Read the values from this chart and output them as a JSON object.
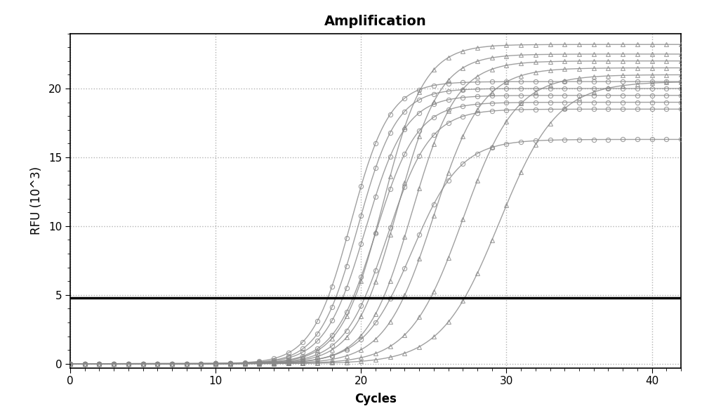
{
  "title": "Amplification",
  "xlabel": "Cycles",
  "ylabel": "RFU (10^3)",
  "xlim": [
    0,
    42
  ],
  "ylim": [
    -0.3,
    24
  ],
  "xticks": [
    0,
    10,
    20,
    30,
    40
  ],
  "yticks": [
    0,
    5,
    10,
    15,
    20
  ],
  "threshold_y": 4.8,
  "threshold_color": "#000000",
  "threshold_lw": 2.5,
  "background_color": "#ffffff",
  "grid_color": "#aaaaaa",
  "curve_color": "#888888",
  "circle_curves": [
    {
      "midpoint": 19.3,
      "plateau": 20.5,
      "steepness": 0.75
    },
    {
      "midpoint": 19.8,
      "plateau": 20.0,
      "steepness": 0.75
    },
    {
      "midpoint": 20.3,
      "plateau": 19.5,
      "steepness": 0.72
    },
    {
      "midpoint": 21.0,
      "plateau": 19.0,
      "steepness": 0.7
    },
    {
      "midpoint": 21.8,
      "plateau": 18.5,
      "steepness": 0.68
    },
    {
      "midpoint": 23.5,
      "plateau": 16.3,
      "steepness": 0.6
    }
  ],
  "triangle_curves": [
    {
      "midpoint": 21.5,
      "plateau": 23.2,
      "steepness": 0.7
    },
    {
      "midpoint": 22.5,
      "plateau": 22.5,
      "steepness": 0.68
    },
    {
      "midpoint": 23.5,
      "plateau": 22.0,
      "steepness": 0.65
    },
    {
      "midpoint": 25.0,
      "plateau": 21.5,
      "steepness": 0.6
    },
    {
      "midpoint": 27.0,
      "plateau": 21.0,
      "steepness": 0.55
    },
    {
      "midpoint": 29.5,
      "plateau": 20.5,
      "steepness": 0.5
    }
  ],
  "title_fontsize": 14,
  "axis_fontsize": 12,
  "tick_fontsize": 11,
  "line_alpha": 0.8,
  "marker_size": 4.5,
  "line_width": 1.0
}
